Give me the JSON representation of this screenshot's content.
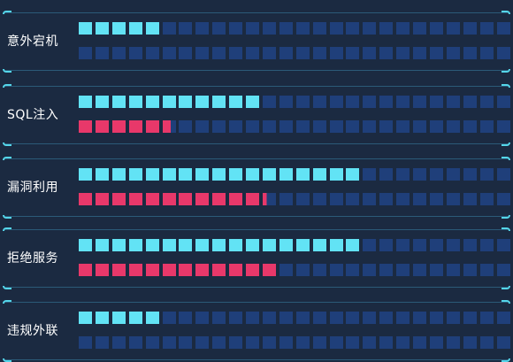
{
  "colors": {
    "background": "#1b2a41",
    "empty": "#1f3f7a",
    "blue": "#62e3f5",
    "red": "#e8386a",
    "line": "#2b5a78",
    "corner": "#55d6ea",
    "text": "#ffffff"
  },
  "segments_per_bar": 26,
  "rows": [
    {
      "label": "意外宕机",
      "blue_filled": 5,
      "red_filled": 0
    },
    {
      "label": "SQL注入",
      "blue_filled": 11,
      "red_filled": 5.6
    },
    {
      "label": "漏洞利用",
      "blue_filled": 17,
      "red_filled": 11.3
    },
    {
      "label": "拒绝服务",
      "blue_filled": 17,
      "red_filled": 12
    },
    {
      "label": "违规外联",
      "blue_filled": 5,
      "red_filled": 0
    }
  ]
}
